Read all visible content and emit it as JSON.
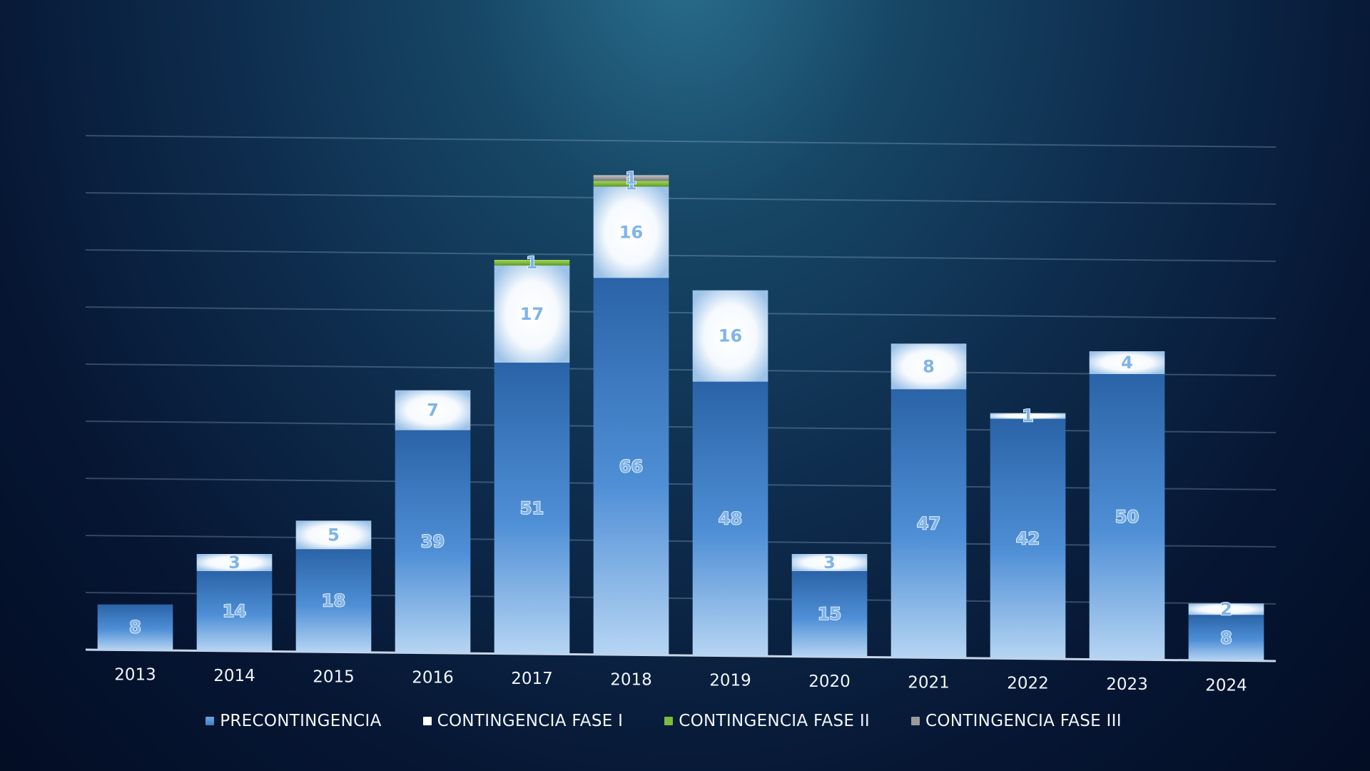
{
  "chart_data": {
    "type": "bar",
    "stacked": true,
    "categories": [
      "2013",
      "2014",
      "2015",
      "2016",
      "2017",
      "2018",
      "2019",
      "2020",
      "2021",
      "2022",
      "2023",
      "2024"
    ],
    "series": [
      {
        "name": "PRECONTINGENCIA",
        "values": [
          8,
          14,
          18,
          39,
          51,
          66,
          48,
          15,
          47,
          42,
          50,
          8
        ],
        "color": "#4f8fd6"
      },
      {
        "name": "CONTINGENCIA FASE I",
        "values": [
          0,
          3,
          5,
          7,
          17,
          16,
          16,
          3,
          8,
          1,
          4,
          2
        ],
        "color": "#ffffff"
      },
      {
        "name": "CONTINGENCIA FASE II",
        "values": [
          0,
          0,
          0,
          0,
          1,
          1,
          0,
          0,
          0,
          0,
          0,
          0
        ],
        "color": "#7dbb3a"
      },
      {
        "name": "CONTINGENCIA FASE III",
        "values": [
          0,
          0,
          0,
          0,
          0,
          1,
          0,
          0,
          0,
          0,
          0,
          0
        ],
        "color": "#9a9a9a"
      }
    ],
    "ylim": [
      0,
      90
    ],
    "grid": true,
    "legend_position": "bottom",
    "data_label_color": "#7fb4ea"
  }
}
